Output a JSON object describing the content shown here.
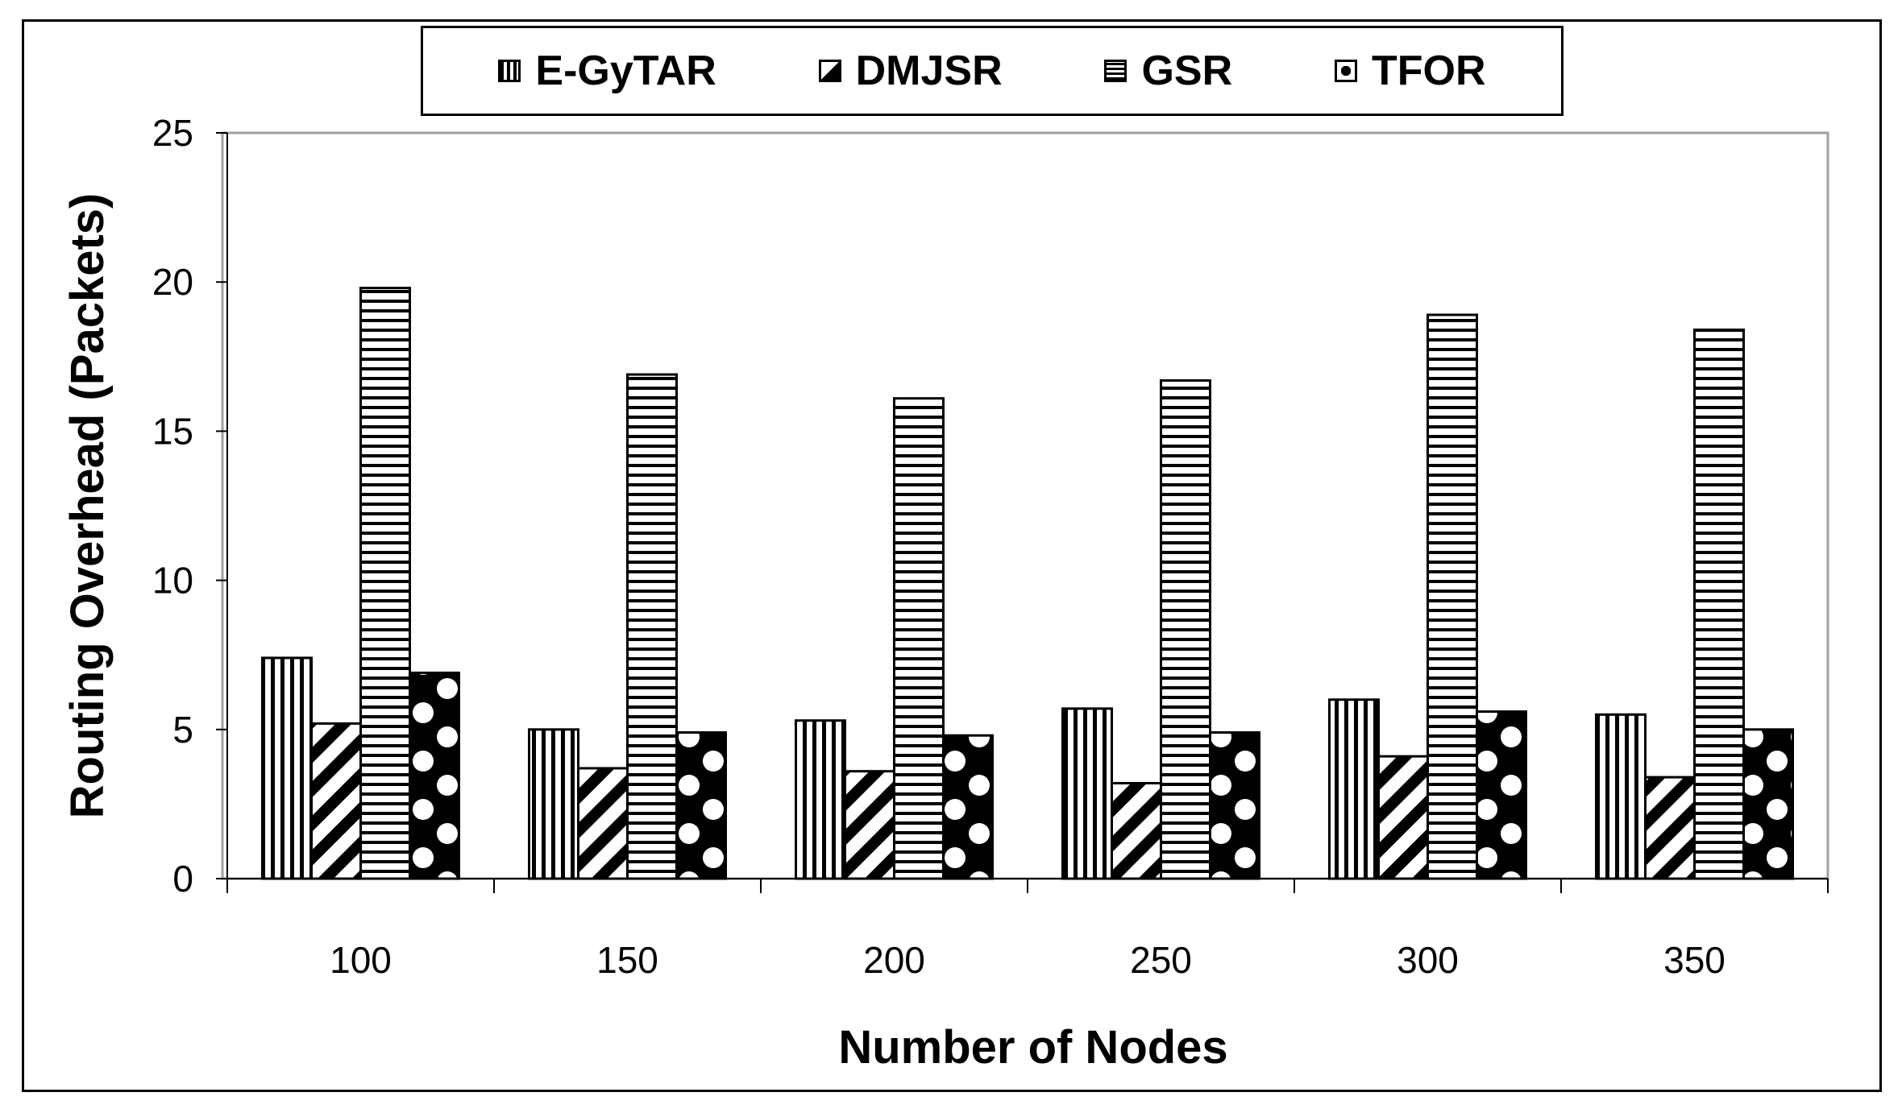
{
  "chart_data": {
    "type": "bar",
    "title": "",
    "xlabel": "Number of Nodes",
    "ylabel": "Routing Overhead (Packets)",
    "categories": [
      "100",
      "150",
      "200",
      "250",
      "300",
      "350"
    ],
    "ylim": [
      0,
      25
    ],
    "yticks": [
      "0",
      "5",
      "10",
      "15",
      "20",
      "25"
    ],
    "grid": false,
    "legend_position": "top-center",
    "series": [
      {
        "name": "E-GyTAR",
        "pattern": "vertical-stripes",
        "values": [
          7.4,
          5.0,
          5.3,
          5.7,
          6.0,
          5.5
        ]
      },
      {
        "name": "DMJSR",
        "pattern": "diagonal-stripes",
        "values": [
          5.2,
          3.7,
          3.6,
          3.2,
          4.1,
          3.4
        ]
      },
      {
        "name": "GSR",
        "pattern": "horizontal-stripes",
        "values": [
          19.8,
          16.9,
          16.1,
          16.7,
          18.9,
          18.4
        ]
      },
      {
        "name": "TFOR",
        "pattern": "dots",
        "values": [
          6.9,
          4.9,
          4.8,
          4.9,
          5.6,
          5.0
        ]
      }
    ],
    "colors": {
      "ink": "#000000",
      "background": "#ffffff",
      "plot_border": "#a0a0a0"
    }
  }
}
